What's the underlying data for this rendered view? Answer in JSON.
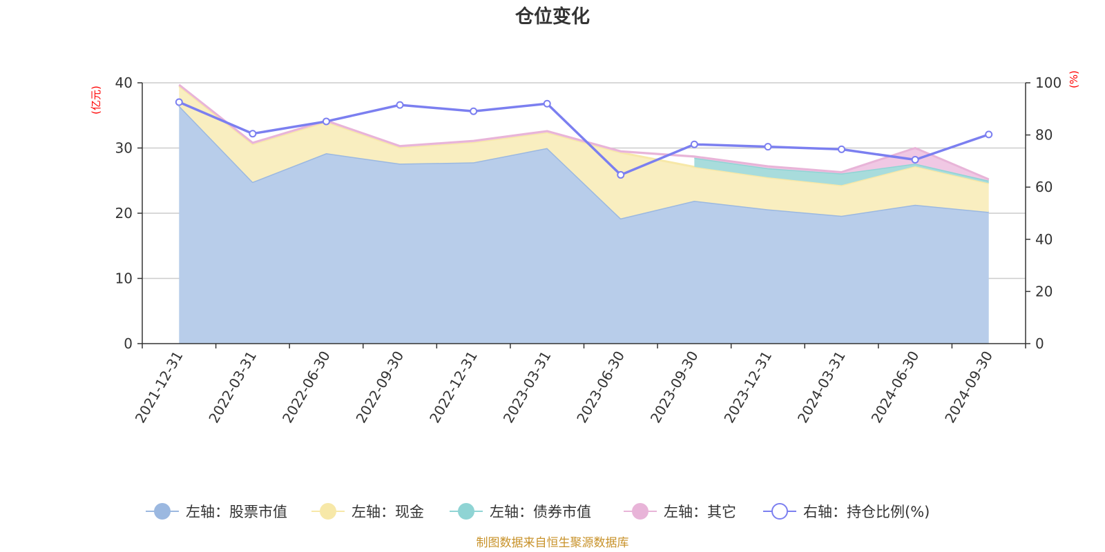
{
  "chart_data": {
    "type": "area",
    "title": "仓位变化",
    "source_note": "制图数据来自恒生聚源数据库",
    "categories": [
      "2021-12-31",
      "2022-03-31",
      "2022-06-30",
      "2022-09-30",
      "2022-12-31",
      "2023-03-31",
      "2023-06-30",
      "2023-09-30",
      "2023-12-31",
      "2024-03-31",
      "2024-06-30",
      "2024-09-30"
    ],
    "left_axis": {
      "unit": "(亿元)",
      "ylim": [
        0,
        40
      ],
      "ticks": [
        "0",
        "10",
        "20",
        "30",
        "40"
      ]
    },
    "right_axis": {
      "unit": "(%)",
      "ylim": [
        0,
        100
      ],
      "ticks": [
        "0",
        "20",
        "40",
        "60",
        "80",
        "100"
      ]
    },
    "stacked_series": [
      {
        "name": "左轴：股票市值",
        "axis": "left",
        "color": "#9bb8e0",
        "fill": "#b8cdea",
        "values": [
          36.5,
          24.8,
          29.2,
          27.6,
          27.8,
          30.0,
          19.2,
          21.9,
          20.6,
          19.6,
          21.3,
          20.2
        ]
      },
      {
        "name": "左轴：现金",
        "axis": "left",
        "color": "#f7e8a8",
        "fill": "#f9eec0",
        "values": [
          3.0,
          5.8,
          4.8,
          2.5,
          3.1,
          2.4,
          10.1,
          5.2,
          4.9,
          4.7,
          5.9,
          4.4
        ]
      },
      {
        "name": "左轴：债券市值",
        "axis": "left",
        "color": "#8fd4d4",
        "fill": "#a8dcdc",
        "values": [
          null,
          null,
          null,
          null,
          null,
          null,
          null,
          1.4,
          1.4,
          1.8,
          0.4,
          0.4
        ]
      },
      {
        "name": "左轴：其它",
        "axis": "left",
        "color": "#e8b4d8",
        "fill": "#f0c8e4",
        "values": [
          0.2,
          0.2,
          0.2,
          0.2,
          0.2,
          0.2,
          0.2,
          0.2,
          0.3,
          0.2,
          2.4,
          0.2
        ]
      }
    ],
    "line_series": {
      "name": "右轴：持仓比例(%)",
      "axis": "right",
      "color": "#7b7ff0",
      "values": [
        92.6,
        80.5,
        85.2,
        91.5,
        89.1,
        92.0,
        64.7,
        76.4,
        75.5,
        74.5,
        70.5,
        80.2
      ]
    },
    "legend_position": "bottom"
  }
}
